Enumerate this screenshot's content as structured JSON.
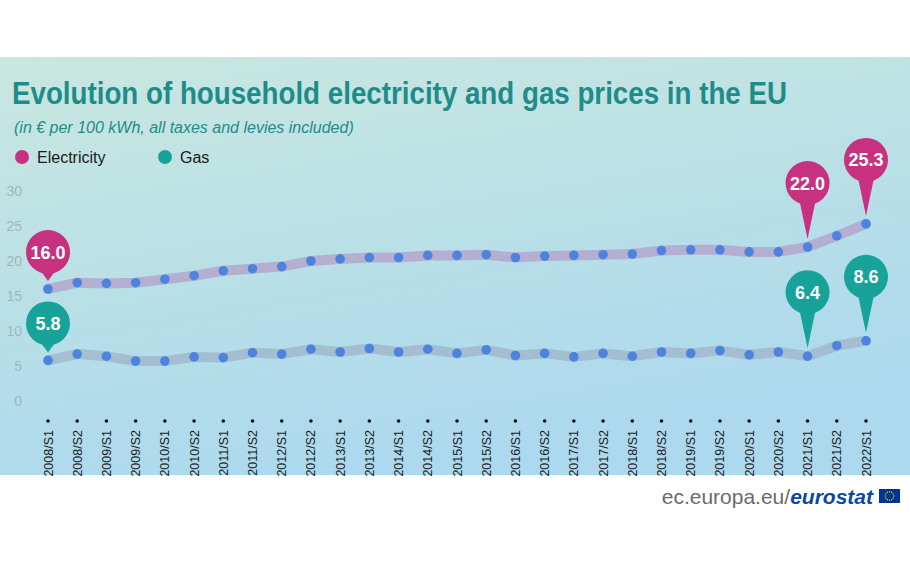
{
  "chart_data": {
    "type": "line",
    "title": "Evolution of household electricity and gas prices in the EU",
    "subtitle": "(in € per 100 kWh, all taxes and levies included)",
    "source": [
      "ec.europa.eu/",
      "eurostat"
    ],
    "categories": [
      "2008/S1",
      "2008/S2",
      "2009/S1",
      "2009/S2",
      "2010/S1",
      "2010/S2",
      "2011/S1",
      "2011/S2",
      "2012/S1",
      "2012/S2",
      "2013/S1",
      "2013/S2",
      "2014/S1",
      "2014/S2",
      "2015/S1",
      "2015/S2",
      "2016/S1",
      "2016/S2",
      "2017/S1",
      "2017/S2",
      "2018/S1",
      "2018/S2",
      "2019/S1",
      "2019/S2",
      "2020/S1",
      "2020/S2",
      "2021/S1",
      "2021/S2",
      "2022/S1"
    ],
    "series": [
      {
        "name": "Electricity",
        "color": "#c8317f",
        "marker": "circle",
        "values": [
          16.0,
          16.9,
          16.8,
          16.9,
          17.4,
          17.9,
          18.6,
          18.9,
          19.2,
          20.0,
          20.3,
          20.5,
          20.5,
          20.8,
          20.8,
          20.9,
          20.5,
          20.7,
          20.8,
          20.9,
          21.0,
          21.5,
          21.6,
          21.6,
          21.3,
          21.3,
          22.0,
          23.6,
          25.3
        ],
        "data_labels": true,
        "value_labels": [
          "16.0",
          null,
          null,
          null,
          null,
          null,
          null,
          null,
          null,
          null,
          null,
          null,
          null,
          null,
          null,
          null,
          null,
          null,
          null,
          null,
          null,
          null,
          null,
          null,
          null,
          null,
          "22.0",
          null,
          "25.3"
        ]
      },
      {
        "name": "Gas",
        "color": "#17a39a",
        "marker": "circle",
        "values": [
          5.8,
          6.7,
          6.4,
          5.7,
          5.7,
          6.3,
          6.2,
          6.9,
          6.7,
          7.4,
          7.0,
          7.5,
          7.0,
          7.4,
          6.8,
          7.3,
          6.5,
          6.8,
          6.3,
          6.8,
          6.4,
          7.0,
          6.8,
          7.2,
          6.6,
          7.0,
          6.4,
          7.9,
          8.6
        ],
        "data_labels": true,
        "value_labels": [
          "5.8",
          null,
          null,
          null,
          null,
          null,
          null,
          null,
          null,
          null,
          null,
          null,
          null,
          null,
          null,
          null,
          null,
          null,
          null,
          null,
          null,
          null,
          null,
          null,
          null,
          null,
          "6.4",
          null,
          "8.6"
        ]
      }
    ],
    "ylim": [
      0,
      30
    ],
    "yticks": [
      0,
      5,
      10,
      15,
      20,
      25,
      30
    ],
    "grid": false,
    "legend": "top-left"
  }
}
